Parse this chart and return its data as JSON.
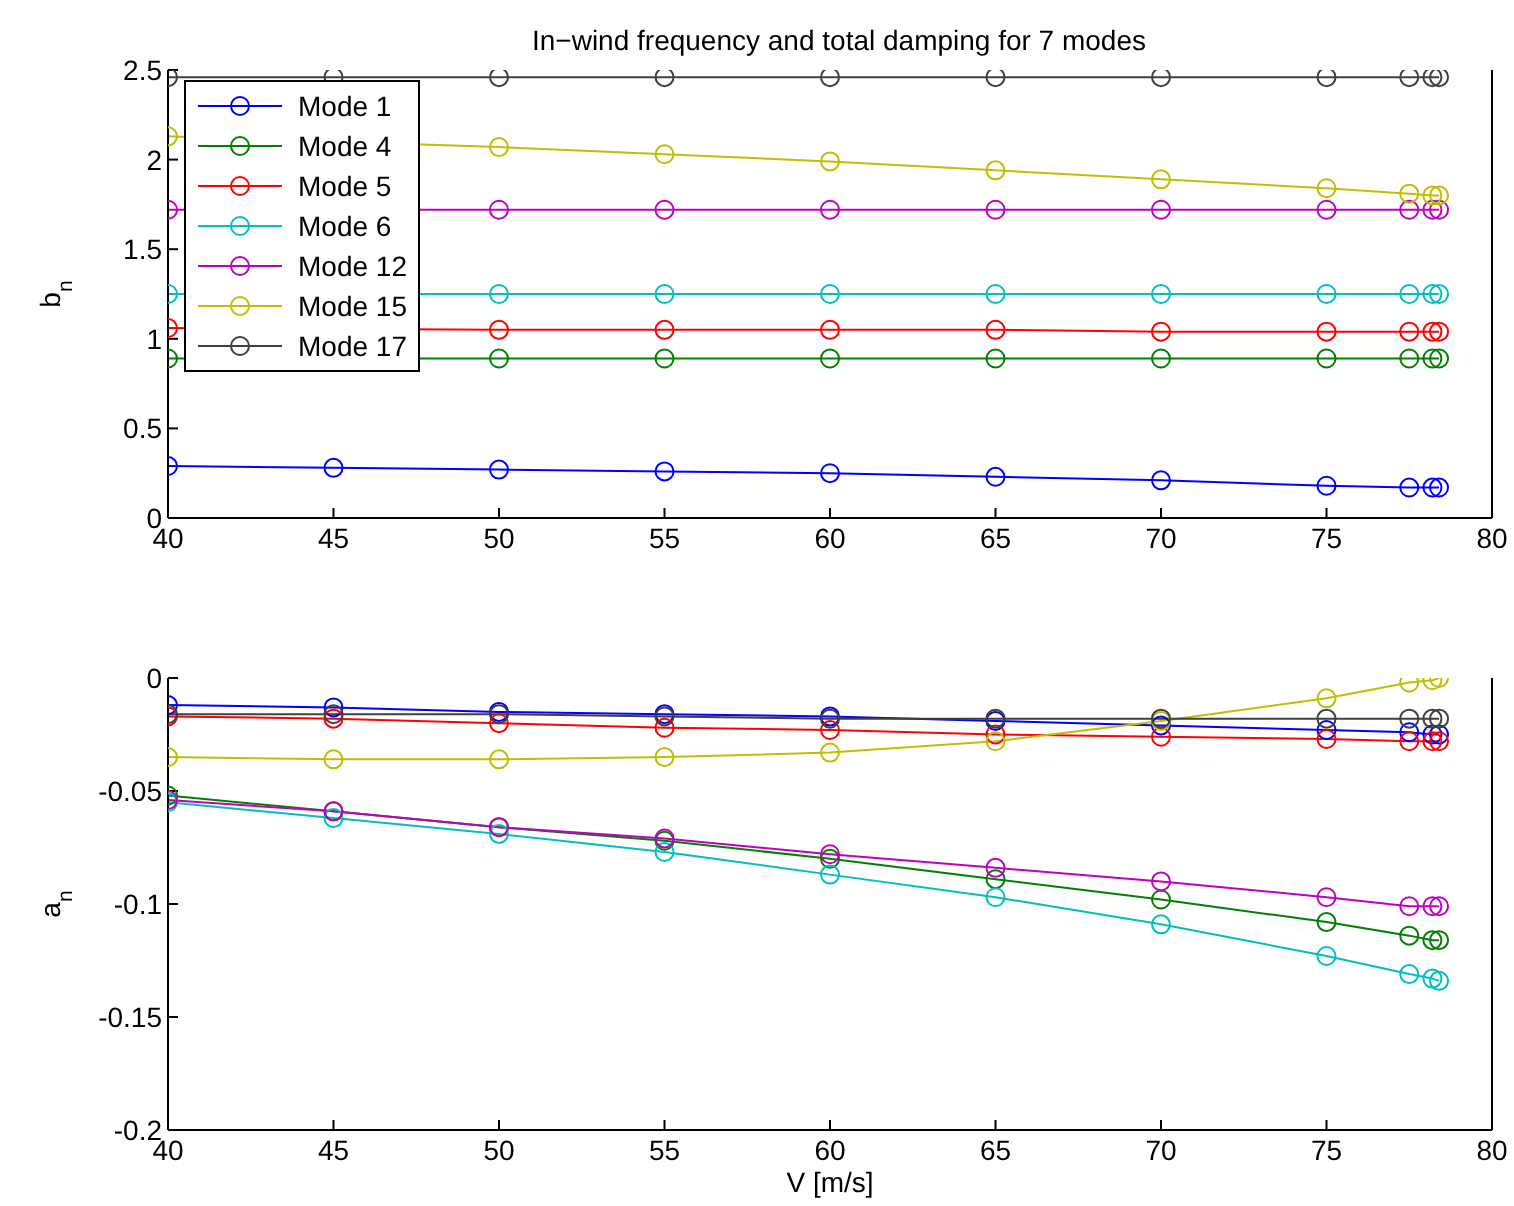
{
  "chart_data": [
    {
      "type": "line",
      "title": "In−wind frequency and total damping for 7 modes",
      "ylabel": "b$_{n}$",
      "x": [
        40,
        45,
        50,
        55,
        60,
        65,
        70,
        75,
        77.5,
        78.2,
        78.4
      ],
      "xlim": [
        40,
        80
      ],
      "xticks": [
        40,
        45,
        50,
        55,
        60,
        65,
        70,
        75,
        80
      ],
      "ylim": [
        0,
        2.5
      ],
      "yticks": [
        0,
        0.5,
        1,
        1.5,
        2,
        2.5
      ],
      "grid": false,
      "legend": "top left",
      "marker": "circle",
      "line_style": "solid",
      "series": [
        {
          "name": "Mode 1",
          "color": "#0000ff",
          "values": [
            0.29,
            0.28,
            0.27,
            0.26,
            0.25,
            0.23,
            0.21,
            0.18,
            0.17,
            0.17,
            0.17
          ]
        },
        {
          "name": "Mode 4",
          "color": "#008000",
          "values": [
            0.89,
            null,
            0.89,
            0.89,
            0.89,
            0.89,
            0.89,
            0.89,
            0.89,
            0.89,
            0.89
          ]
        },
        {
          "name": "Mode 5",
          "color": "#ff0000",
          "values": [
            1.06,
            null,
            1.05,
            1.05,
            1.05,
            1.05,
            1.04,
            1.04,
            1.04,
            1.04,
            1.04
          ]
        },
        {
          "name": "Mode 6",
          "color": "#00bfbf",
          "values": [
            1.25,
            null,
            1.25,
            1.25,
            1.25,
            1.25,
            1.25,
            1.25,
            1.25,
            1.25,
            1.25
          ]
        },
        {
          "name": "Mode 12",
          "color": "#bf00bf",
          "values": [
            1.72,
            null,
            1.72,
            1.72,
            1.72,
            1.72,
            1.72,
            1.72,
            1.72,
            1.72,
            1.72
          ]
        },
        {
          "name": "Mode 15",
          "color": "#bfbf00",
          "values": [
            2.13,
            null,
            2.07,
            2.03,
            1.99,
            1.94,
            1.89,
            1.84,
            1.81,
            1.8,
            1.8
          ]
        },
        {
          "name": "Mode 17",
          "color": "#404040",
          "values": [
            2.46,
            2.46,
            2.46,
            2.46,
            2.46,
            2.46,
            2.46,
            2.46,
            2.46,
            2.46,
            2.46
          ]
        }
      ]
    },
    {
      "type": "line",
      "xlabel": "V [m/s]",
      "ylabel": "a$_{n}$",
      "x": [
        40,
        45,
        50,
        55,
        60,
        65,
        70,
        75,
        77.5,
        78.2,
        78.4
      ],
      "xlim": [
        40,
        80
      ],
      "xticks": [
        40,
        45,
        50,
        55,
        60,
        65,
        70,
        75,
        80
      ],
      "ylim": [
        -0.2,
        0
      ],
      "yticks": [
        -0.2,
        -0.15,
        -0.1,
        -0.05,
        0
      ],
      "grid": false,
      "marker": "circle",
      "line_style": "solid",
      "series": [
        {
          "color": "#0000ff",
          "values": [
            -0.012,
            -0.013,
            -0.015,
            -0.016,
            -0.017,
            -0.019,
            -0.021,
            -0.023,
            -0.024,
            -0.025,
            -0.025
          ]
        },
        {
          "color": "#008000",
          "values": [
            -0.052,
            -0.059,
            -0.066,
            -0.072,
            -0.08,
            -0.089,
            -0.098,
            -0.108,
            -0.114,
            -0.116,
            -0.116
          ]
        },
        {
          "color": "#ff0000",
          "values": [
            -0.017,
            -0.018,
            -0.02,
            -0.022,
            -0.023,
            -0.025,
            -0.026,
            -0.027,
            -0.028,
            -0.028,
            -0.028
          ]
        },
        {
          "color": "#00bfbf",
          "values": [
            -0.055,
            -0.062,
            -0.069,
            -0.077,
            -0.087,
            -0.097,
            -0.109,
            -0.123,
            -0.131,
            -0.133,
            -0.134
          ]
        },
        {
          "color": "#bf00bf",
          "values": [
            -0.054,
            -0.059,
            -0.066,
            -0.071,
            -0.078,
            -0.084,
            -0.09,
            -0.097,
            -0.101,
            -0.101,
            -0.101
          ]
        },
        {
          "color": "#bfbf00",
          "values": [
            -0.035,
            -0.036,
            -0.036,
            -0.035,
            -0.033,
            -0.028,
            -0.019,
            -0.009,
            -0.002,
            -0.001,
            0
          ]
        },
        {
          "color": "#404040",
          "values": [
            -0.016,
            -0.016,
            -0.016,
            -0.017,
            -0.018,
            -0.018,
            -0.018,
            -0.018,
            -0.018,
            -0.018,
            -0.018
          ]
        }
      ]
    }
  ]
}
